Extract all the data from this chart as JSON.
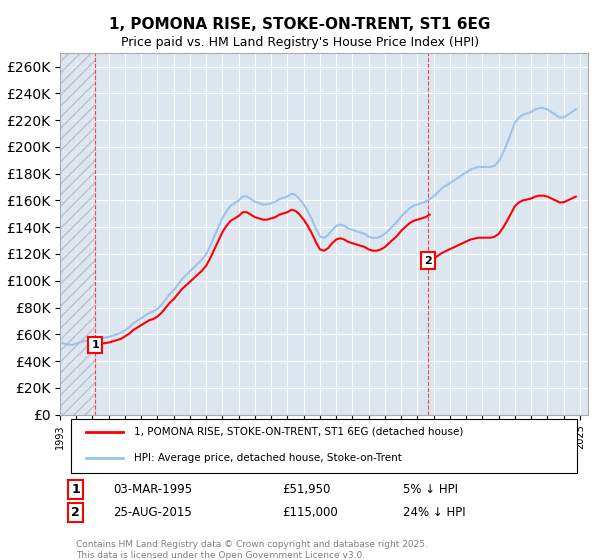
{
  "title": "1, POMONA RISE, STOKE-ON-TRENT, ST1 6EG",
  "subtitle": "Price paid vs. HM Land Registry's House Price Index (HPI)",
  "xlabel": "",
  "ylabel": "",
  "ylim": [
    0,
    270000
  ],
  "yticks": [
    0,
    20000,
    40000,
    60000,
    80000,
    100000,
    120000,
    140000,
    160000,
    180000,
    200000,
    220000,
    240000,
    260000
  ],
  "xlim_year": [
    1993,
    2025
  ],
  "background_color": "#dce6f0",
  "plot_bg_color": "#dce6f0",
  "grid_color": "#ffffff",
  "hpi_color": "#9dc3e6",
  "price_color": "#ff0000",
  "vline_color": "#ff0000",
  "marker1_year": 1995.17,
  "marker2_year": 2015.65,
  "sale1_price": 51950,
  "sale2_price": 115000,
  "legend_house": "1, POMONA RISE, STOKE-ON-TRENT, ST1 6EG (detached house)",
  "legend_hpi": "HPI: Average price, detached house, Stoke-on-Trent",
  "note1_box": "1",
  "note2_box": "2",
  "note1_date": "03-MAR-1995",
  "note1_price": "£51,950",
  "note1_hpi": "5% ↓ HPI",
  "note2_date": "25-AUG-2015",
  "note2_price": "£115,000",
  "note2_hpi": "24% ↓ HPI",
  "footer": "Contains HM Land Registry data © Crown copyright and database right 2025.\nThis data is licensed under the Open Government Licence v3.0.",
  "hpi_data_x": [
    1993.0,
    1993.25,
    1993.5,
    1993.75,
    1994.0,
    1994.25,
    1994.5,
    1994.75,
    1995.0,
    1995.25,
    1995.5,
    1995.75,
    1996.0,
    1996.25,
    1996.5,
    1996.75,
    1997.0,
    1997.25,
    1997.5,
    1997.75,
    1998.0,
    1998.25,
    1998.5,
    1998.75,
    1999.0,
    1999.25,
    1999.5,
    1999.75,
    2000.0,
    2000.25,
    2000.5,
    2000.75,
    2001.0,
    2001.25,
    2001.5,
    2001.75,
    2002.0,
    2002.25,
    2002.5,
    2002.75,
    2003.0,
    2003.25,
    2003.5,
    2003.75,
    2004.0,
    2004.25,
    2004.5,
    2004.75,
    2005.0,
    2005.25,
    2005.5,
    2005.75,
    2006.0,
    2006.25,
    2006.5,
    2006.75,
    2007.0,
    2007.25,
    2007.5,
    2007.75,
    2008.0,
    2008.25,
    2008.5,
    2008.75,
    2009.0,
    2009.25,
    2009.5,
    2009.75,
    2010.0,
    2010.25,
    2010.5,
    2010.75,
    2011.0,
    2011.25,
    2011.5,
    2011.75,
    2012.0,
    2012.25,
    2012.5,
    2012.75,
    2013.0,
    2013.25,
    2013.5,
    2013.75,
    2014.0,
    2014.25,
    2014.5,
    2014.75,
    2015.0,
    2015.25,
    2015.5,
    2015.75,
    2016.0,
    2016.25,
    2016.5,
    2016.75,
    2017.0,
    2017.25,
    2017.5,
    2017.75,
    2018.0,
    2018.25,
    2018.5,
    2018.75,
    2019.0,
    2019.25,
    2019.5,
    2019.75,
    2020.0,
    2020.25,
    2020.5,
    2020.75,
    2021.0,
    2021.25,
    2021.5,
    2021.75,
    2022.0,
    2022.25,
    2022.5,
    2022.75,
    2023.0,
    2023.25,
    2023.5,
    2023.75,
    2024.0,
    2024.25,
    2024.5,
    2024.75
  ],
  "hpi_data_y": [
    54000,
    53000,
    52500,
    52000,
    53000,
    54000,
    55000,
    55500,
    55000,
    56000,
    57000,
    57500,
    58000,
    59000,
    60000,
    61000,
    63000,
    65000,
    68000,
    70000,
    72000,
    74000,
    76000,
    77000,
    79000,
    82000,
    86000,
    90000,
    93000,
    97000,
    101000,
    104000,
    107000,
    110000,
    113000,
    116000,
    120000,
    126000,
    133000,
    140000,
    147000,
    152000,
    156000,
    158000,
    160000,
    163000,
    163000,
    161000,
    159000,
    158000,
    157000,
    157000,
    158000,
    159000,
    161000,
    162000,
    163000,
    165000,
    164000,
    161000,
    157000,
    152000,
    146000,
    139000,
    133000,
    132000,
    134000,
    138000,
    141000,
    142000,
    141000,
    139000,
    138000,
    137000,
    136000,
    135000,
    133000,
    132000,
    132000,
    133000,
    135000,
    138000,
    141000,
    144000,
    148000,
    151000,
    154000,
    156000,
    157000,
    158000,
    159000,
    161000,
    163000,
    166000,
    169000,
    171000,
    173000,
    175000,
    177000,
    179000,
    181000,
    183000,
    184000,
    185000,
    185000,
    185000,
    185000,
    186000,
    189000,
    195000,
    202000,
    210000,
    218000,
    222000,
    224000,
    225000,
    226000,
    228000,
    229000,
    229000,
    228000,
    226000,
    224000,
    222000,
    222000,
    224000,
    226000,
    228000
  ],
  "price_data_x": [
    1995.17,
    2015.65
  ],
  "price_data_y": [
    51950,
    115000
  ]
}
